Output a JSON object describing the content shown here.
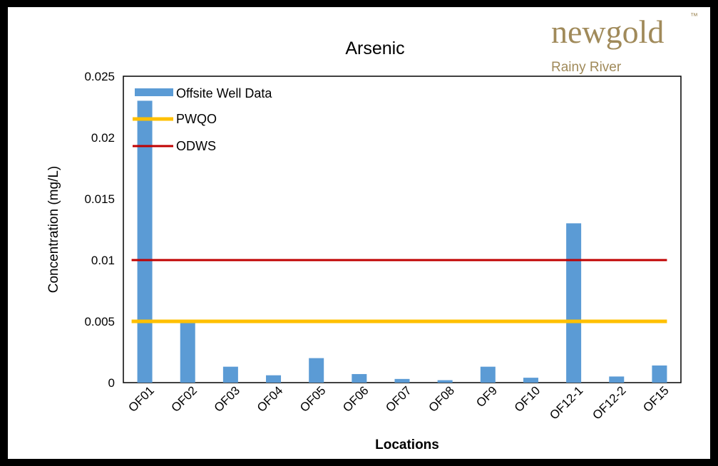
{
  "logo": {
    "brand": "newgold",
    "trademark": "™",
    "subtitle": "Rainy River",
    "color": "#a08a5a"
  },
  "chart_data": {
    "type": "bar",
    "title": "Arsenic",
    "xlabel": "Locations",
    "ylabel": "Concentration (mg/L)",
    "ylim": [
      0,
      0.025
    ],
    "yticks": [
      0,
      0.005,
      0.01,
      0.015,
      0.02,
      0.025
    ],
    "ytick_labels": [
      "0",
      "0.005",
      "0.01",
      "0.015",
      "0.02",
      "0.025"
    ],
    "categories": [
      "OF01",
      "OF02",
      "OF03",
      "OF04",
      "OF05",
      "OF06",
      "OF07",
      "OF08",
      "OF9",
      "OF10",
      "OF12-1",
      "OF12-2",
      "OF15"
    ],
    "series": [
      {
        "name": "Offsite Well Data",
        "values": [
          0.023,
          0.005,
          0.0013,
          0.0006,
          0.002,
          0.0007,
          0.0003,
          0.0002,
          0.0013,
          0.0004,
          0.013,
          0.0005,
          0.0014
        ],
        "color": "#5b9bd5"
      }
    ],
    "reference_lines": [
      {
        "name": "PWQO",
        "value": 0.005,
        "color": "#ffc000"
      },
      {
        "name": "ODWS",
        "value": 0.01,
        "color": "#c00000"
      }
    ],
    "legend": "top-left",
    "grid": false
  }
}
